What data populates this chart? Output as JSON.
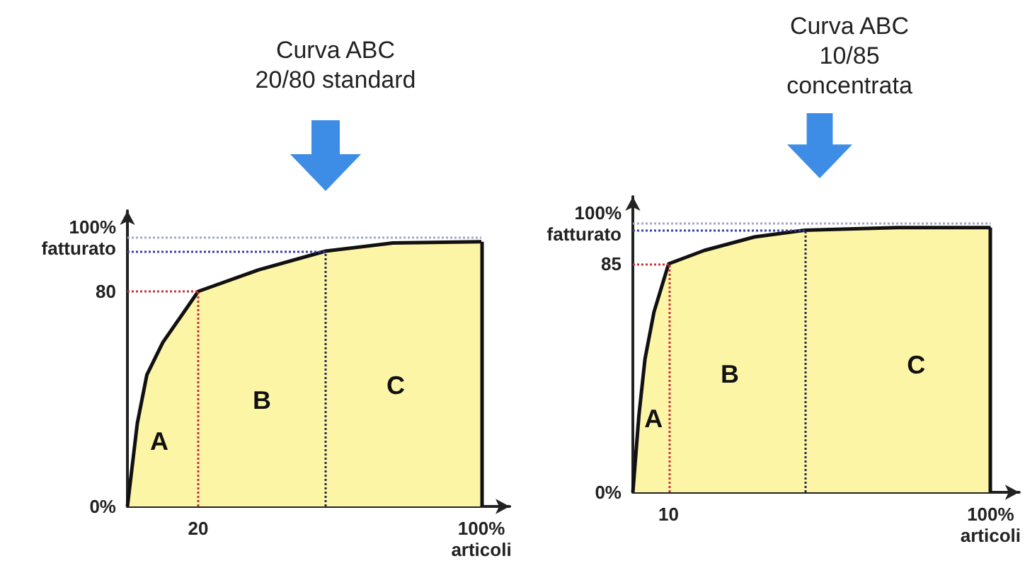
{
  "chart_data": [
    {
      "type": "area",
      "title": "Curva ABC\n20/80 standard",
      "color": "#fdf5a6",
      "x": [
        0,
        2.8,
        5.5,
        10,
        20,
        37,
        56,
        75,
        100
      ],
      "values": [
        0,
        31,
        49,
        61,
        80,
        88,
        95,
        98,
        98.5
      ],
      "xlim": [
        0,
        108
      ],
      "xticks": [
        {
          "value": 20,
          "label": "20"
        },
        {
          "value": 100,
          "label": "100%\narticoli"
        }
      ],
      "ylim": [
        0,
        110
      ],
      "yticks": [
        {
          "value": 0,
          "label": "0%"
        },
        {
          "value": 80,
          "label": "80"
        },
        {
          "value": 100,
          "label": "100%\nfatturato"
        }
      ],
      "ref_lines": [
        {
          "axis": "x",
          "value": 20,
          "color": "#c8323c",
          "line_style": "dotted"
        },
        {
          "axis": "y",
          "value": 80,
          "color": "#c8323c",
          "line_style": "dotted"
        },
        {
          "axis": "x",
          "value": 56,
          "color": "#1f2a55",
          "line_style": "dotted"
        },
        {
          "axis": "y",
          "value": 95,
          "color": "#3a3fa0",
          "line_style": "dotted"
        },
        {
          "axis": "x",
          "value": 100,
          "color": "#111111",
          "line_style": "solid"
        },
        {
          "axis": "y",
          "value": 100,
          "color": "#a0a8c8",
          "line_style": "dotted"
        }
      ],
      "annotations": [
        "A",
        "B",
        "C"
      ]
    },
    {
      "type": "area",
      "title": "Curva ABC\n10/85\nconcentrata",
      "color": "#fdf5a6",
      "x": [
        0,
        1.7,
        3.4,
        5.9,
        10,
        20,
        34,
        48,
        74,
        100
      ],
      "values": [
        0,
        28.6,
        49.6,
        67,
        85,
        90,
        95,
        97.5,
        98.5,
        98.5
      ],
      "xlim": [
        0,
        108
      ],
      "xticks": [
        {
          "value": 10,
          "label": "10"
        },
        {
          "value": 100,
          "label": "100%\narticoli"
        }
      ],
      "ylim": [
        0,
        110
      ],
      "yticks": [
        {
          "value": 0,
          "label": "0%"
        },
        {
          "value": 85,
          "label": "85"
        },
        {
          "value": 100,
          "label": "100%\nfatturato"
        }
      ],
      "ref_lines": [
        {
          "axis": "x",
          "value": 10,
          "color": "#c8323c",
          "line_style": "dotted"
        },
        {
          "axis": "y",
          "value": 85,
          "color": "#c8323c",
          "line_style": "dotted"
        },
        {
          "axis": "x",
          "value": 48,
          "color": "#1f2a55",
          "line_style": "dotted"
        },
        {
          "axis": "y",
          "value": 97.5,
          "color": "#3a3fa0",
          "line_style": "dotted"
        },
        {
          "axis": "x",
          "value": 100,
          "color": "#111111",
          "line_style": "solid"
        },
        {
          "axis": "y",
          "value": 100,
          "color": "#a0a8c8",
          "line_style": "dotted"
        }
      ],
      "annotations": [
        "A",
        "B",
        "C"
      ]
    }
  ]
}
